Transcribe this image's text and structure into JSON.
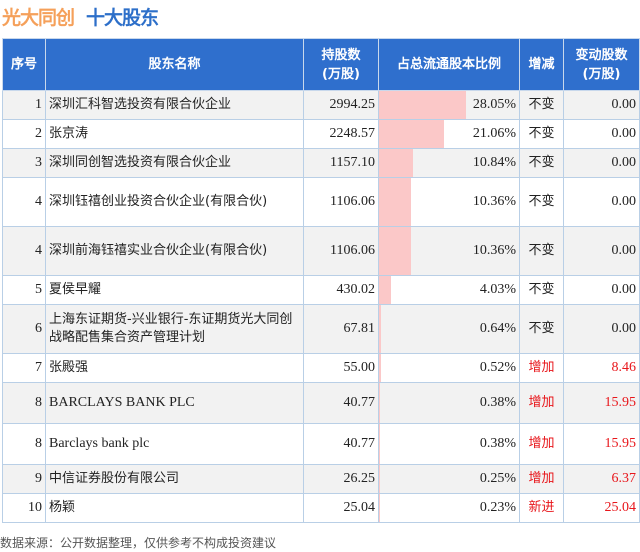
{
  "title": {
    "company": "光大同创",
    "subtitle": "十大股东"
  },
  "headers": {
    "index": "序号",
    "name": "股东名称",
    "shares": "持股数\n(万股)",
    "ratio": "占总流通股本比例",
    "change": "增减",
    "delta": "变动股数\n(万股)"
  },
  "colors": {
    "header_bg": "#2f6fcd",
    "bar": "#fbc8c8",
    "increase": "#e8161b",
    "title_orange": "#f5a05a",
    "title_blue": "#2d6fc9"
  },
  "rows": [
    {
      "index": "1",
      "name": "深圳汇科智选投资有限合伙企业",
      "shares": "2994.25",
      "ratio": "28.05%",
      "ratio_value": 28.05,
      "change": "不变",
      "delta": "0.00"
    },
    {
      "index": "2",
      "name": "张京涛",
      "shares": "2248.57",
      "ratio": "21.06%",
      "ratio_value": 21.06,
      "change": "不变",
      "delta": "0.00"
    },
    {
      "index": "3",
      "name": "深圳同创智选投资有限合伙企业",
      "shares": "1157.10",
      "ratio": "10.84%",
      "ratio_value": 10.84,
      "change": "不变",
      "delta": "0.00"
    },
    {
      "index": "4",
      "name": "深圳钰禧创业投资合伙企业(有限合伙)",
      "shares": "1106.06",
      "ratio": "10.36%",
      "ratio_value": 10.36,
      "change": "不变",
      "delta": "0.00"
    },
    {
      "index": "4",
      "name": "深圳前海钰禧实业合伙企业(有限合伙)",
      "shares": "1106.06",
      "ratio": "10.36%",
      "ratio_value": 10.36,
      "change": "不变",
      "delta": "0.00"
    },
    {
      "index": "5",
      "name": "夏侯早耀",
      "shares": "430.02",
      "ratio": "4.03%",
      "ratio_value": 4.03,
      "change": "不变",
      "delta": "0.00"
    },
    {
      "index": "6",
      "name": "上海东证期货-兴业银行-东证期货光大同创战略配售集合资产管理计划",
      "shares": "67.81",
      "ratio": "0.64%",
      "ratio_value": 0.64,
      "change": "不变",
      "delta": "0.00"
    },
    {
      "index": "7",
      "name": "张殿强",
      "shares": "55.00",
      "ratio": "0.52%",
      "ratio_value": 0.52,
      "change": "增加",
      "delta": "8.46"
    },
    {
      "index": "8",
      "name": "BARCLAYS BANK PLC",
      "shares": "40.77",
      "ratio": "0.38%",
      "ratio_value": 0.38,
      "change": "增加",
      "delta": "15.95"
    },
    {
      "index": "8",
      "name": "Barclays bank plc",
      "shares": "40.77",
      "ratio": "0.38%",
      "ratio_value": 0.38,
      "change": "增加",
      "delta": "15.95"
    },
    {
      "index": "9",
      "name": "中信证券股份有限公司",
      "shares": "26.25",
      "ratio": "0.25%",
      "ratio_value": 0.25,
      "change": "增加",
      "delta": "6.37"
    },
    {
      "index": "10",
      "name": "杨颖",
      "shares": "25.04",
      "ratio": "0.23%",
      "ratio_value": 0.23,
      "change": "新进",
      "delta": "25.04"
    }
  ],
  "footer": "数据来源：公开数据整理，仅供参考不构成投资建议"
}
